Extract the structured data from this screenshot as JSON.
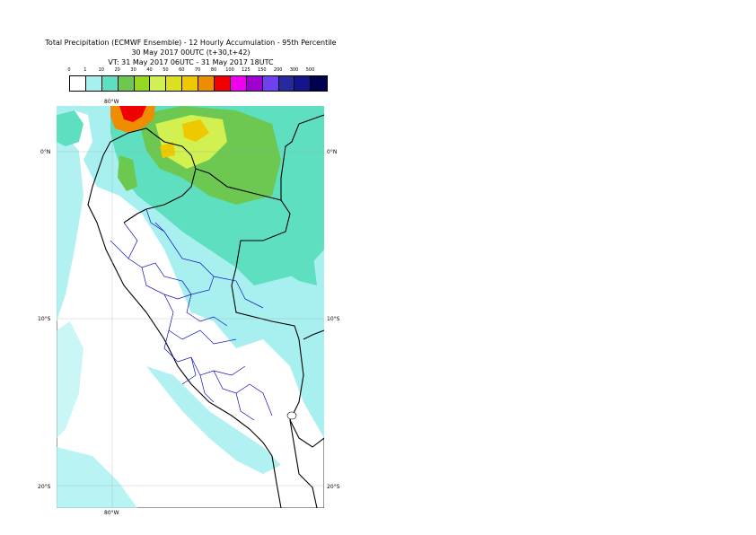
{
  "title": {
    "line1": "Total Precipitation (ECMWF Ensemble) - 12 Hourly Accumulation - 95th Percentile",
    "line2": "30 May 2017 00UTC (t+30,t+42)",
    "line3": "VT: 31 May 2017 06UTC - 31 May 2017 18UTC"
  },
  "legend": {
    "labels": [
      "0",
      "1",
      "10",
      "20",
      "30",
      "40",
      "50",
      "60",
      "70",
      "80",
      "100",
      "125",
      "150",
      "200",
      "300",
      "500"
    ],
    "colors": [
      "#ffffff",
      "#a8f0f0",
      "#5ee0c0",
      "#6cc850",
      "#96d820",
      "#d2f050",
      "#dce020",
      "#f0c800",
      "#f08c00",
      "#f00000",
      "#f000f0",
      "#a000d0",
      "#6e40f0",
      "#2828a0",
      "#14148c",
      "#000050"
    ]
  },
  "axes": {
    "lon_top": "80°W",
    "lon_bottom": "80°W",
    "lat_0_left": "0°N",
    "lat_0_right": "0°N",
    "lat_10_left": "10°S",
    "lat_10_right": "10°S",
    "lat_20_left": "20°S",
    "lat_20_right": "20°S"
  },
  "map": {
    "ocean_color": "#ffffff",
    "land_color": "#ffffff",
    "light_precip_color": "#a8f0f0",
    "border_color": "#000000",
    "region_color": "#1010c0"
  }
}
